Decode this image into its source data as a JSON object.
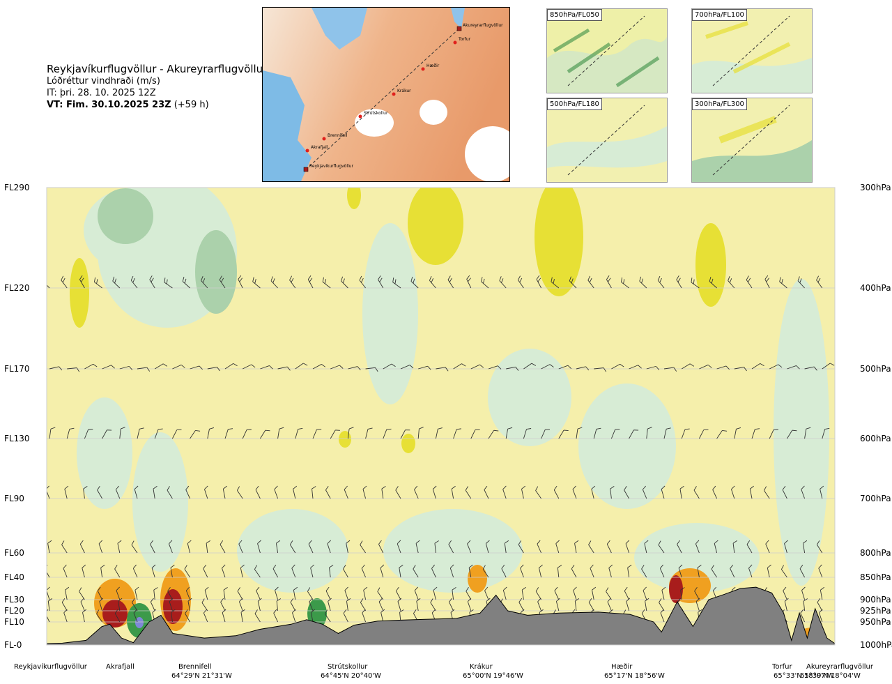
{
  "header": {
    "title": "Reykjavíkurflugvöllur - Akureyrarflugvöllur",
    "subtitle": "Lóðréttur vindhraði (m/s)",
    "issue_time": "IT: þri. 28. 10. 2025 12Z",
    "valid_bold": "VT: Fim. 30.10.2025 23Z",
    "valid_offset": "(+59 h)"
  },
  "route_map": {
    "points": [
      {
        "name": "Akureyrarflugvöllur"
      },
      {
        "name": "Torfur"
      },
      {
        "name": "Hæðir"
      },
      {
        "name": "Krákur"
      },
      {
        "name": "Strútskollur"
      },
      {
        "name": "Brennifell"
      },
      {
        "name": "Akrafjall"
      },
      {
        "name": "Reykjavíkurflugvöllur"
      }
    ]
  },
  "insets": [
    {
      "label": "850hPa/FL050"
    },
    {
      "label": "700hPa/FL100"
    },
    {
      "label": "500hPa/FL180"
    },
    {
      "label": "300hPa/FL300"
    }
  ],
  "chart_data": {
    "type": "heatmap",
    "title": "Lóðréttur vindhraði (m/s)",
    "y_levels": [
      {
        "fl": "FL290",
        "hpa": "300hPa",
        "p": 300
      },
      {
        "fl": "FL220",
        "hpa": "400hPa",
        "p": 400
      },
      {
        "fl": "FL170",
        "hpa": "500hPa",
        "p": 500
      },
      {
        "fl": "FL130",
        "hpa": "600hPa",
        "p": 600
      },
      {
        "fl": "FL90",
        "hpa": "700hPa",
        "p": 700
      },
      {
        "fl": "FL60",
        "hpa": "800hPa",
        "p": 800
      },
      {
        "fl": "FL40",
        "hpa": "850hPa",
        "p": 850
      },
      {
        "fl": "FL30",
        "hpa": "900hPa",
        "p": 900
      },
      {
        "fl": "FL20",
        "hpa": "925hPa",
        "p": 925
      },
      {
        "fl": "FL10",
        "hpa": "950hPa",
        "p": 950
      },
      {
        "fl": "FL-0",
        "hpa": "1000hPa",
        "p": 1000
      }
    ],
    "ylim_hpa": [
      300,
      1000
    ],
    "route_fraction_range": [
      0,
      1
    ],
    "stations": [
      {
        "name": "Reykjavíkurflugvöllur",
        "coord": "",
        "route_fraction": 0.0
      },
      {
        "name": "Akrafjall",
        "coord": "",
        "route_fraction": 0.07
      },
      {
        "name": "Brennifell",
        "coord": "64°29'N 21°31'W",
        "route_fraction": 0.14
      },
      {
        "name": "Strútskollur",
        "coord": "64°45'N 20°40'W",
        "route_fraction": 0.35
      },
      {
        "name": "Krákur",
        "coord": "65°00'N 19°46'W",
        "route_fraction": 0.57
      },
      {
        "name": "Hæðir",
        "coord": "65°17'N 18°56'W",
        "route_fraction": 0.78
      },
      {
        "name": "Torfur",
        "coord": "65°33'N 18°07'W",
        "route_fraction": 0.955
      },
      {
        "name": "Akureyrarflugvöllur",
        "coord": "65°39'N 18°04'W",
        "route_fraction": 1.0
      }
    ],
    "terrain_hpa": [
      [
        0.0,
        997
      ],
      [
        0.02,
        996
      ],
      [
        0.05,
        990
      ],
      [
        0.07,
        960
      ],
      [
        0.08,
        955
      ],
      [
        0.095,
        985
      ],
      [
        0.11,
        995
      ],
      [
        0.13,
        950
      ],
      [
        0.145,
        935
      ],
      [
        0.16,
        975
      ],
      [
        0.2,
        985
      ],
      [
        0.24,
        980
      ],
      [
        0.27,
        966
      ],
      [
        0.31,
        955
      ],
      [
        0.33,
        945
      ],
      [
        0.35,
        955
      ],
      [
        0.37,
        975
      ],
      [
        0.39,
        957
      ],
      [
        0.42,
        948
      ],
      [
        0.45,
        946
      ],
      [
        0.48,
        944
      ],
      [
        0.52,
        942
      ],
      [
        0.55,
        930
      ],
      [
        0.57,
        890
      ],
      [
        0.585,
        925
      ],
      [
        0.61,
        935
      ],
      [
        0.65,
        930
      ],
      [
        0.7,
        928
      ],
      [
        0.74,
        933
      ],
      [
        0.77,
        950
      ],
      [
        0.78,
        972
      ],
      [
        0.8,
        905
      ],
      [
        0.82,
        960
      ],
      [
        0.84,
        900
      ],
      [
        0.86,
        888
      ],
      [
        0.88,
        875
      ],
      [
        0.9,
        872
      ],
      [
        0.92,
        885
      ],
      [
        0.935,
        930
      ],
      [
        0.945,
        990
      ],
      [
        0.955,
        930
      ],
      [
        0.965,
        985
      ],
      [
        0.975,
        920
      ],
      [
        0.99,
        985
      ],
      [
        1.0,
        997
      ]
    ],
    "color_scale": [
      "#f2f0b0",
      "#e7e035",
      "#f0a020",
      "#a81d1c",
      "#ffffff",
      "#d7ecd5",
      "#abd1ab",
      "#3c9a4a",
      "#7f88d8"
    ]
  }
}
